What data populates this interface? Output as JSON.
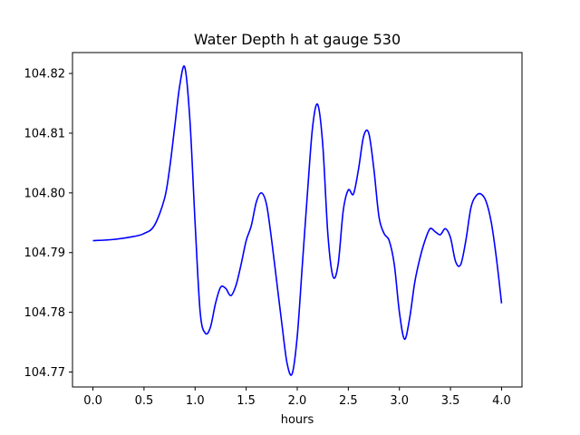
{
  "chart_data": {
    "type": "line",
    "title": "Water Depth h at gauge 530",
    "xlabel": "hours",
    "ylabel": "",
    "xlim": [
      -0.2,
      4.2
    ],
    "ylim": [
      104.7675,
      104.8235
    ],
    "xticks": [
      0.0,
      0.5,
      1.0,
      1.5,
      2.0,
      2.5,
      3.0,
      3.5,
      4.0
    ],
    "xtick_labels": [
      "0.0",
      "0.5",
      "1.0",
      "1.5",
      "2.0",
      "2.5",
      "3.0",
      "3.5",
      "4.0"
    ],
    "yticks": [
      104.77,
      104.78,
      104.79,
      104.8,
      104.81,
      104.82
    ],
    "ytick_labels": [
      "104.77",
      "104.78",
      "104.79",
      "104.80",
      "104.81",
      "104.82"
    ],
    "grid": false,
    "series": [
      {
        "color": "#0000ff",
        "x": [
          0.0,
          0.2,
          0.4,
          0.5,
          0.6,
          0.7,
          0.75,
          0.8,
          0.85,
          0.9,
          0.95,
          1.0,
          1.05,
          1.1,
          1.15,
          1.2,
          1.25,
          1.3,
          1.35,
          1.4,
          1.45,
          1.5,
          1.55,
          1.6,
          1.65,
          1.7,
          1.75,
          1.8,
          1.85,
          1.9,
          1.95,
          2.0,
          2.05,
          2.1,
          2.15,
          2.2,
          2.25,
          2.3,
          2.35,
          2.4,
          2.45,
          2.5,
          2.55,
          2.6,
          2.65,
          2.7,
          2.75,
          2.8,
          2.85,
          2.9,
          2.95,
          3.0,
          3.05,
          3.1,
          3.15,
          3.2,
          3.25,
          3.3,
          3.35,
          3.4,
          3.45,
          3.5,
          3.55,
          3.6,
          3.65,
          3.7,
          3.75,
          3.8,
          3.85,
          3.9,
          3.95,
          4.0
        ],
        "y": [
          104.792,
          104.7922,
          104.7927,
          104.7932,
          104.7945,
          104.799,
          104.804,
          104.811,
          104.818,
          104.821,
          104.812,
          104.795,
          104.78,
          104.7765,
          104.7775,
          104.7815,
          104.7842,
          104.784,
          104.7828,
          104.7845,
          104.788,
          104.792,
          104.7945,
          104.7985,
          104.8,
          104.798,
          104.792,
          104.785,
          104.778,
          104.7715,
          104.7697,
          104.776,
          104.788,
          104.8,
          104.811,
          104.8148,
          104.808,
          104.793,
          104.786,
          104.788,
          104.797,
          104.8005,
          104.7998,
          104.804,
          104.8095,
          104.81,
          104.804,
          104.796,
          104.7932,
          104.792,
          104.788,
          104.78,
          104.7755,
          104.779,
          104.785,
          104.789,
          104.792,
          104.794,
          104.7935,
          104.793,
          104.794,
          104.7925,
          104.7885,
          104.788,
          104.792,
          104.7975,
          104.7995,
          104.7998,
          104.7985,
          104.795,
          104.789,
          104.7815
        ]
      }
    ]
  }
}
